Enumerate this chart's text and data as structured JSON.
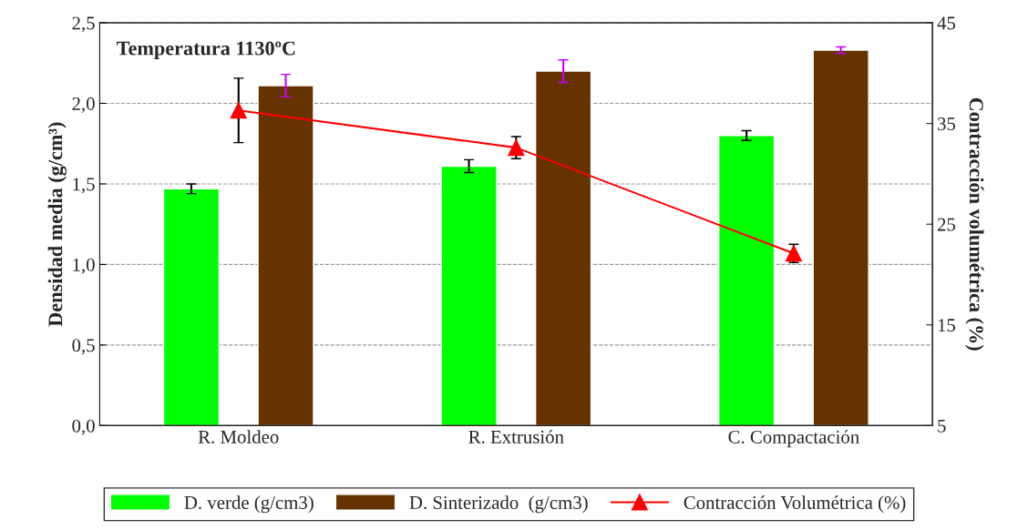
{
  "chart_data": {
    "type": "bar",
    "ylabel": "Densidad media (g/cm³)",
    "y2label": "Contracción volumétrica (%)",
    "annotations": [
      "Temperatura 1130ºC"
    ],
    "categories": [
      "R. Moldeo",
      "R. Extrusión",
      "C. Compactación"
    ],
    "series": [
      {
        "name": "D. verde (g/cm3)",
        "color": "#00ff00",
        "values": [
          1.47,
          1.61,
          1.8
        ],
        "errors": [
          0.03,
          0.04,
          0.03
        ]
      },
      {
        "name": "D. Sinterizado  (g/cm3)",
        "color": "#663300",
        "values": [
          2.11,
          2.2,
          2.33
        ],
        "errors": [
          0.07,
          0.07,
          0.02
        ]
      },
      {
        "name": "Contracción Volumétrica (%)",
        "type": "line",
        "axis": "y2",
        "color": "#ff0000",
        "marker": "triangle",
        "values": [
          36.3,
          32.6,
          22.1
        ],
        "errors": [
          3.2,
          1.1,
          0.9
        ]
      }
    ],
    "ylim": [
      0,
      2.5
    ],
    "yticks": [
      {
        "value": 0,
        "label": "0,0"
      },
      {
        "value": 0.5,
        "label": "0,5"
      },
      {
        "value": 1.0,
        "label": "1,0"
      },
      {
        "value": 1.5,
        "label": "1,5"
      },
      {
        "value": 2.0,
        "label": "2,0"
      },
      {
        "value": 2.5,
        "label": "2,5"
      }
    ],
    "y2lim": [
      5,
      45
    ],
    "y2ticks": [
      5,
      15,
      25,
      35,
      45
    ],
    "grid": "y",
    "legend": "bottom"
  }
}
